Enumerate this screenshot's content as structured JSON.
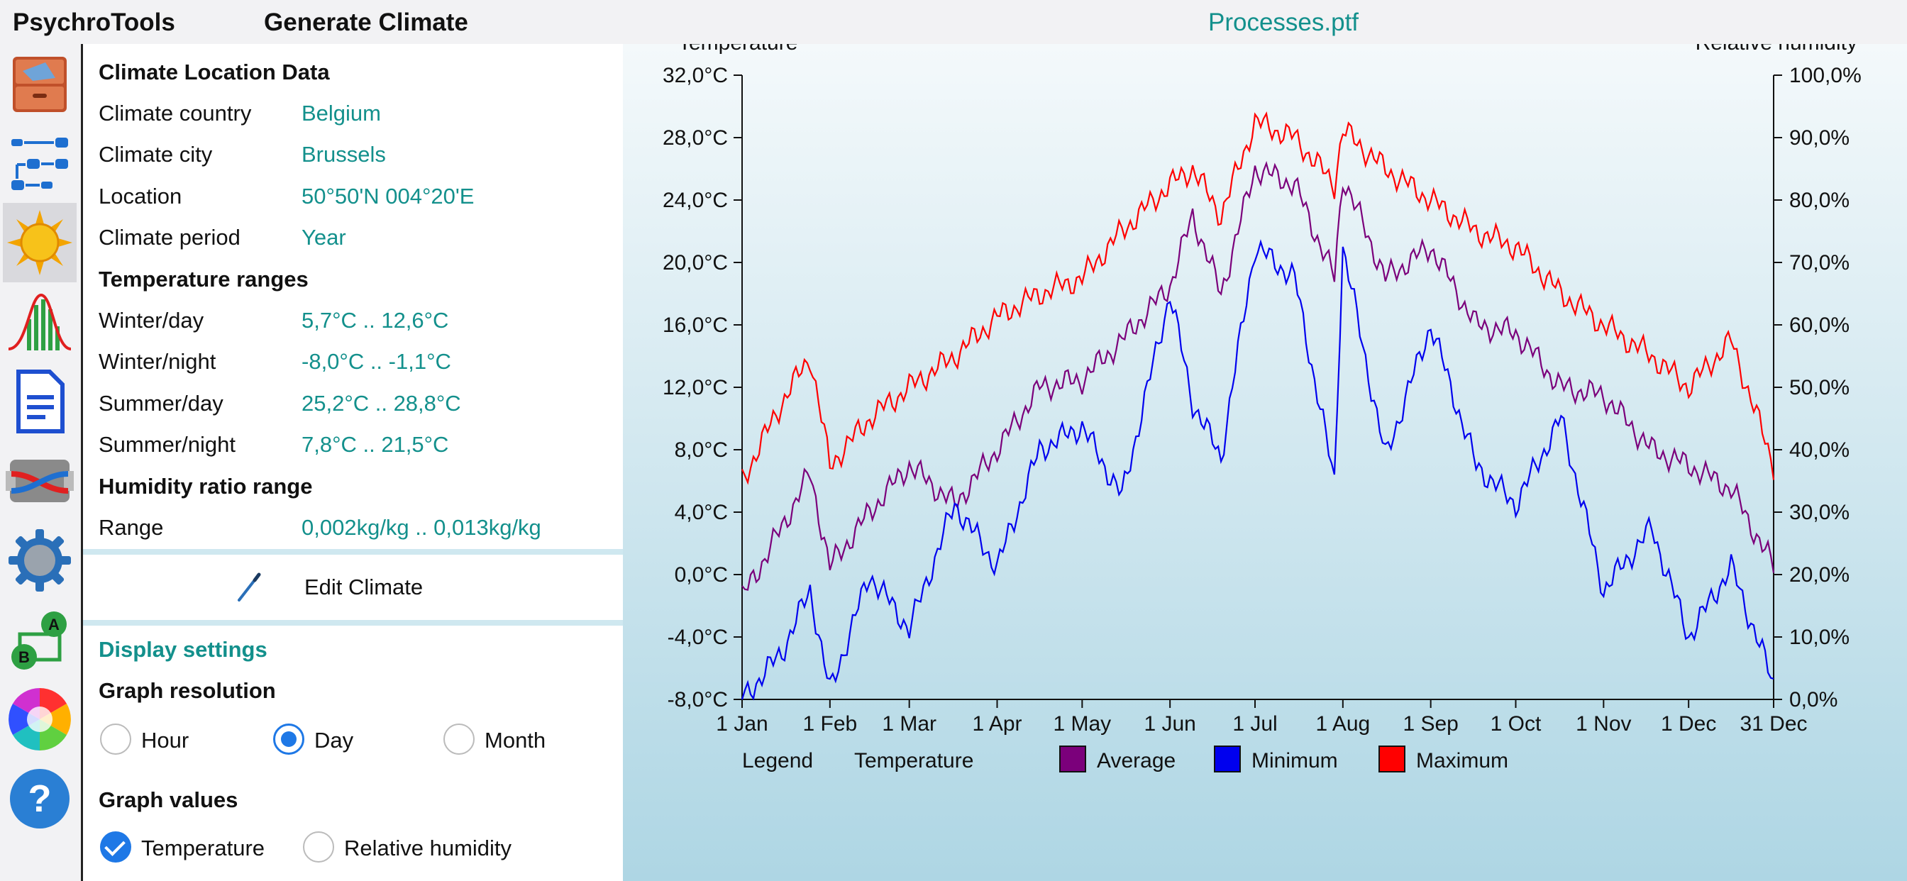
{
  "app": {
    "name": "PsychroTools",
    "page_title": "Generate Climate",
    "document": "Processes.ptf"
  },
  "toolbar": [
    {
      "icon": "archive-icon"
    },
    {
      "icon": "process-flow-icon"
    },
    {
      "icon": "sun-climate-icon",
      "active": true
    },
    {
      "icon": "distribution-icon"
    },
    {
      "icon": "document-icon"
    },
    {
      "icon": "heat-exchanger-icon"
    },
    {
      "icon": "settings-gear-icon"
    },
    {
      "icon": "ab-conversion-icon"
    },
    {
      "icon": "color-wheel-icon"
    },
    {
      "icon": "help-icon"
    }
  ],
  "climate": {
    "heading": "Climate Location Data",
    "country_label": "Climate country",
    "country": "Belgium",
    "city_label": "Climate city",
    "city": "Brussels",
    "location_label": "Location",
    "location": "50°50'N  004°20'E",
    "period_label": "Climate period",
    "period": "Year"
  },
  "temperature_ranges": {
    "heading": "Temperature ranges",
    "winter_day_label": "Winter/day",
    "winter_day": "5,7°C .. 12,6°C",
    "winter_night_label": "Winter/night",
    "winter_night": "-8,0°C .. -1,1°C",
    "summer_day_label": "Summer/day",
    "summer_day": "25,2°C .. 28,8°C",
    "summer_night_label": "Summer/night",
    "summer_night": "7,8°C .. 21,5°C"
  },
  "humidity": {
    "heading": "Humidity ratio range",
    "range_label": "Range",
    "range": "0,002kg/kg .. 0,013kg/kg"
  },
  "edit": {
    "label": "Edit Climate"
  },
  "display": {
    "heading": "Display settings",
    "resolution_heading": "Graph resolution",
    "resolutions": [
      "Hour",
      "Day",
      "Month"
    ],
    "resolution_selected": "Day",
    "values_heading": "Graph values",
    "temperature_label": "Temperature",
    "temperature_checked": true,
    "humidity_label": "Relative humidity",
    "humidity_checked": false
  },
  "chart_data": {
    "type": "line",
    "ylabel_left": "Temperature",
    "ylabel_right": "Relative humidity",
    "y_left_ticks": [
      "32,0°C",
      "28,0°C",
      "24,0°C",
      "20,0°C",
      "16,0°C",
      "12,0°C",
      "8,0°C",
      "4,0°C",
      "0,0°C",
      "-4,0°C",
      "-8,0°C"
    ],
    "y_right_ticks": [
      "100,0%",
      "90,0%",
      "80,0%",
      "70,0%",
      "60,0%",
      "50,0%",
      "40,0%",
      "30,0%",
      "20,0%",
      "10,0%",
      "0,0%"
    ],
    "ylim": [
      -8,
      32
    ],
    "x_ticks": [
      "1 Jan",
      "1 Feb",
      "1 Mar",
      "1 Apr",
      "1 May",
      "1 Jun",
      "1 Jul",
      "1 Aug",
      "1 Sep",
      "1 Oct",
      "1 Nov",
      "1 Dec",
      "31 Dec"
    ],
    "x_tick_days": [
      1,
      32,
      60,
      91,
      121,
      152,
      182,
      213,
      244,
      274,
      305,
      335,
      365
    ],
    "legend_label": "Legend",
    "legend_group": "Temperature",
    "series": [
      {
        "name": "Average",
        "color": "#7b007b",
        "x": [
          1,
          15,
          25,
          32,
          46,
          60,
          76,
          91,
          106,
          121,
          135,
          152,
          160,
          170,
          182,
          196,
          210,
          213,
          228,
          244,
          260,
          274,
          290,
          305,
          322,
          335,
          350,
          365
        ],
        "y": [
          -1.5,
          3,
          6.5,
          0.5,
          4,
          7,
          4.5,
          8,
          12,
          12.5,
          15,
          18.5,
          23,
          18,
          26,
          25,
          19,
          25.5,
          19,
          21,
          16,
          15.5,
          12,
          11.5,
          8,
          7,
          5.5,
          0.5
        ]
      },
      {
        "name": "Minimum",
        "color": "#0000ee",
        "x": [
          1,
          15,
          25,
          32,
          46,
          60,
          76,
          91,
          106,
          121,
          135,
          152,
          160,
          170,
          182,
          196,
          210,
          213,
          228,
          244,
          260,
          274,
          290,
          305,
          322,
          335,
          350,
          365
        ],
        "y": [
          -8,
          -5,
          -1,
          -7.5,
          0,
          -3.5,
          4.5,
          0.5,
          8,
          9.5,
          5,
          18,
          11,
          7.5,
          21,
          19,
          6,
          21,
          7.5,
          16,
          7,
          4.5,
          10,
          -1,
          3,
          -4,
          0.5,
          -7
        ]
      },
      {
        "name": "Maximum",
        "color": "#ff0000",
        "x": [
          1,
          15,
          25,
          32,
          46,
          60,
          76,
          91,
          106,
          121,
          135,
          152,
          160,
          170,
          182,
          196,
          210,
          213,
          228,
          244,
          260,
          274,
          290,
          305,
          322,
          335,
          350,
          365
        ],
        "y": [
          6,
          11,
          14,
          7,
          10,
          12,
          14,
          16.5,
          18,
          19,
          22,
          25,
          26,
          23,
          29,
          28,
          25,
          28.5,
          26,
          24,
          22,
          21,
          18,
          16,
          14,
          12,
          15,
          7
        ]
      }
    ]
  }
}
